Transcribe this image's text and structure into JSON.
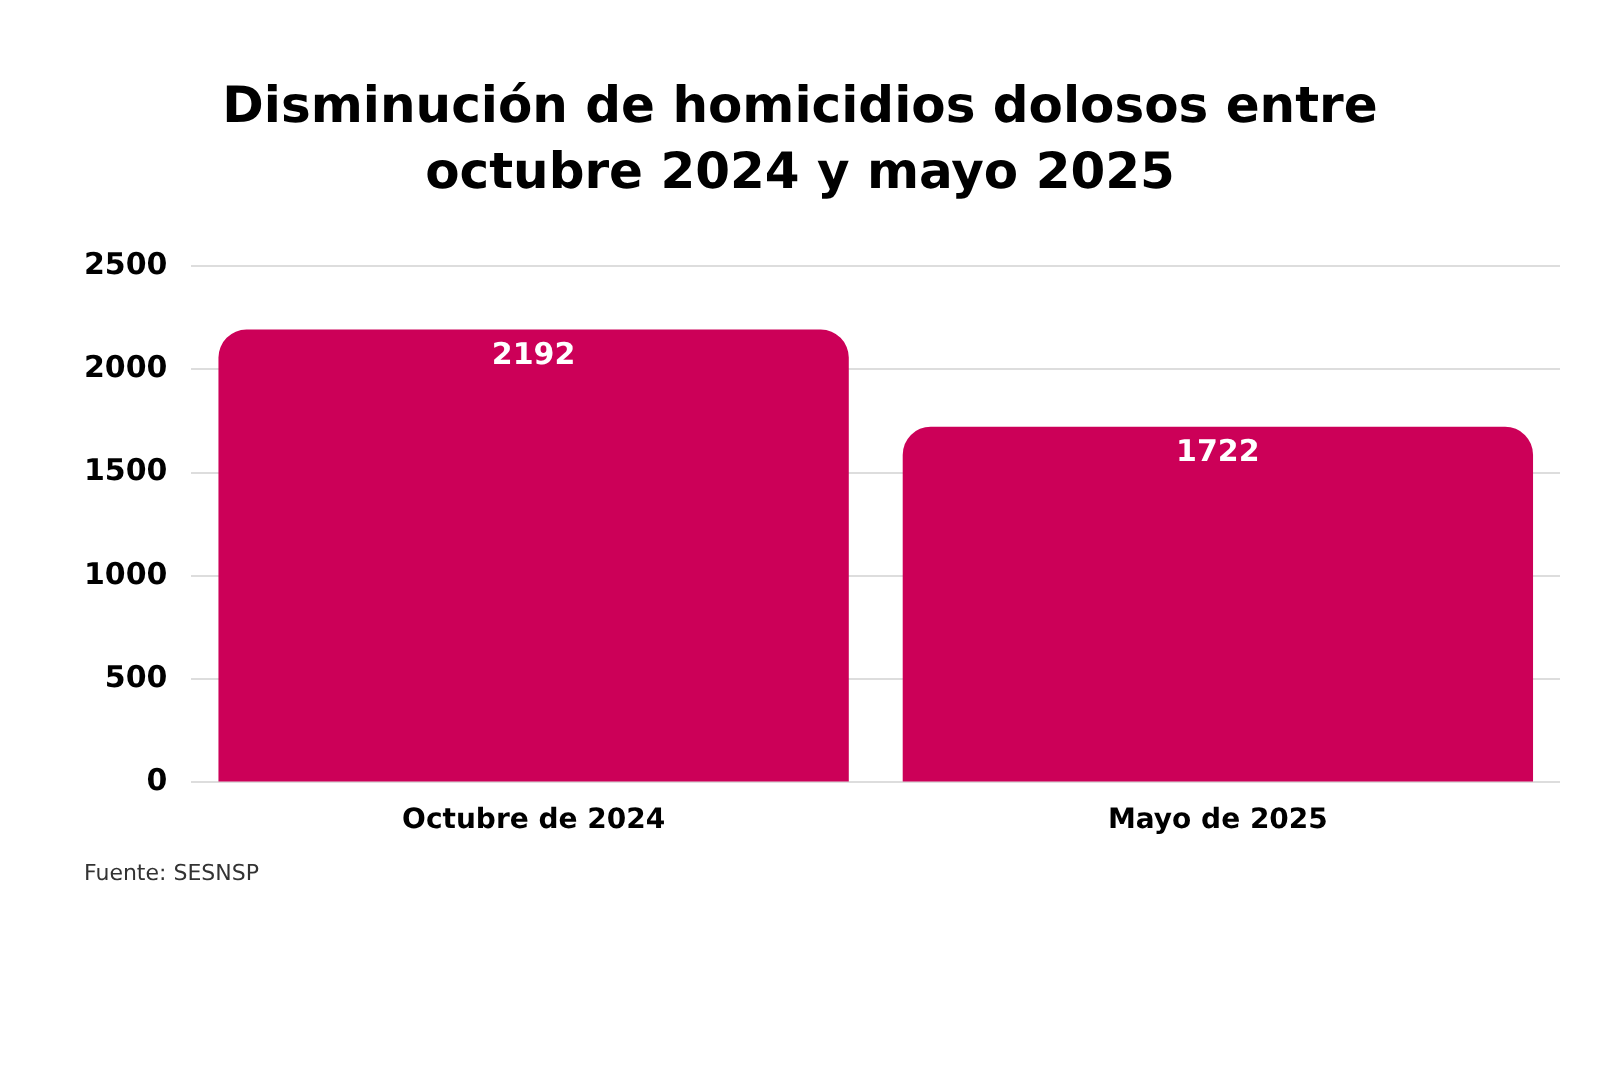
{
  "chart_data": {
    "type": "bar",
    "title": "Disminución de homicidios dolosos entre octubre 2024 y mayo 2025",
    "categories": [
      "Octubre de 2024",
      "Mayo de 2025"
    ],
    "values": [
      2192,
      1722
    ],
    "color": "#cc0058",
    "ylim": [
      0,
      2500
    ],
    "yticks": [
      0,
      500,
      1000,
      1500,
      2000,
      2500
    ],
    "grid": "y",
    "data_labels": true,
    "annotations": [
      "Fuente: SESNSP"
    ]
  }
}
